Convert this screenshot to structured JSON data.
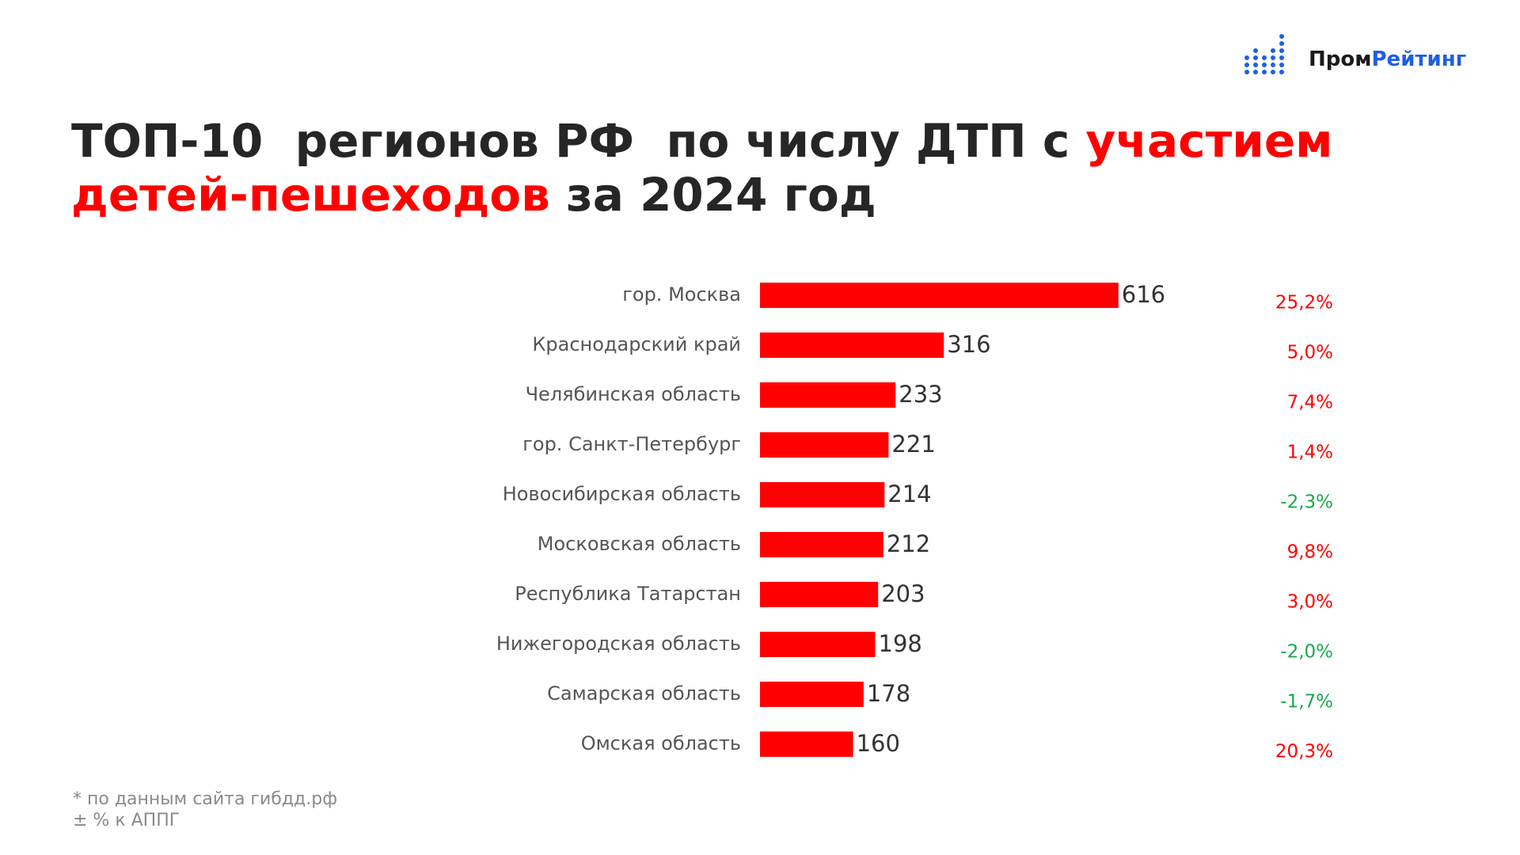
{
  "logo": {
    "parts": [
      {
        "text": "Пром",
        "color": "#1a1a1a"
      },
      {
        "text": "Рейтинг",
        "color": "#1f5fe0"
      }
    ]
  },
  "chart_data": {
    "type": "bar",
    "orientation": "horizontal",
    "title": [
      [
        {
          "text": "ТОП-10  регионов РФ  по числу ДТП с ",
          "color": "#262626"
        },
        {
          "text": "участием",
          "color": "#ff0000"
        }
      ],
      [
        {
          "text": "детей-пешеходов",
          "color": "#ff0000"
        },
        {
          "text": " за 2024 год",
          "color": "#262626"
        }
      ]
    ],
    "categories": [
      "гор. Москва",
      "Краснодарский край",
      "Челябинская область",
      "гор. Санкт-Петербург",
      "Новосибирская область",
      "Московская область",
      "Республика Татарстан",
      "Нижегородская область",
      "Самарская область",
      "Омская область"
    ],
    "values": [
      616,
      316,
      233,
      221,
      214,
      212,
      203,
      198,
      178,
      160
    ],
    "color": "#ff0000",
    "changes": {
      "values": [
        25.2,
        5.0,
        7.4,
        1.4,
        -2.3,
        9.8,
        3.0,
        -2.0,
        -1.7,
        20.3
      ],
      "value_labels": [
        "25,2%",
        "5,0%",
        "7,4%",
        "1,4%",
        "-2,3%",
        "9,8%",
        "3,0%",
        "-2,0%",
        "-1,7%",
        "20,3%"
      ],
      "positive_color": "#ff0000",
      "negative_color": "#1aa84c"
    },
    "notes": [
      "* по данным сайта гибдд.рф",
      "± % к АППГ"
    ]
  }
}
